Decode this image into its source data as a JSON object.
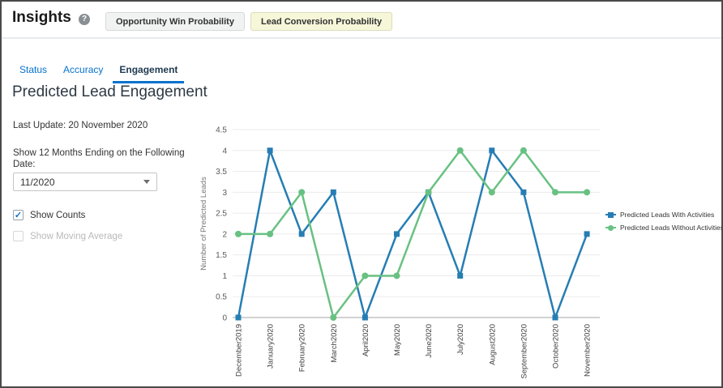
{
  "header": {
    "title": "Insights",
    "buttons": [
      {
        "label": "Opportunity Win Probability",
        "selected": false
      },
      {
        "label": "Lead Conversion Probability",
        "selected": true
      }
    ]
  },
  "tabs": [
    {
      "label": "Status"
    },
    {
      "label": "Accuracy"
    },
    {
      "label": "Engagement"
    }
  ],
  "active_tab": "Engagement",
  "page_title": "Predicted Lead Engagement",
  "last_update": "Last Update: 20 November 2020",
  "date_filter": {
    "label": "Show 12 Months Ending on the Following Date:",
    "selected_value": "11/2020"
  },
  "options": {
    "show_counts": {
      "label": "Show Counts",
      "checked": true,
      "disabled": false,
      "check_glyph": "✓"
    },
    "show_moving_average": {
      "label": "Show Moving Average",
      "checked": false,
      "disabled": true,
      "check_glyph": ""
    }
  },
  "colors": {
    "series_blue": "#267db3",
    "series_green": "#68c182",
    "link_blue": "#0572ce",
    "active_tab_text": "#1e3a50",
    "selected_button_bg": "#f6f6d9",
    "gridline": "#ebebeb",
    "axis_line": "#a6a6a6",
    "tick_label": "#595959",
    "x_label": "#404040",
    "axis_title": "#767676"
  },
  "chart_data": {
    "type": "line",
    "categories": [
      "December2019",
      "January2020",
      "February2020",
      "March2020",
      "April2020",
      "May2020",
      "June2020",
      "July2020",
      "August2020",
      "September2020",
      "October2020",
      "November2020"
    ],
    "series": [
      {
        "name": "Predicted Leads With Activities",
        "color": "#267db3",
        "marker": "square",
        "values": [
          0,
          4,
          2,
          3,
          0,
          2,
          3,
          1,
          4,
          3,
          0,
          2
        ]
      },
      {
        "name": "Predicted Leads Without Activities",
        "color": "#68c182",
        "marker": "circle",
        "values": [
          2,
          2,
          3,
          0,
          1,
          1,
          3,
          4,
          3,
          4,
          3,
          3
        ]
      }
    ],
    "title": "",
    "xlabel": "",
    "ylabel": "Number of Predicted Leads",
    "ylim": [
      0,
      4.5
    ],
    "ytick_step": 0.5,
    "grid": true,
    "legend_position": "right"
  }
}
